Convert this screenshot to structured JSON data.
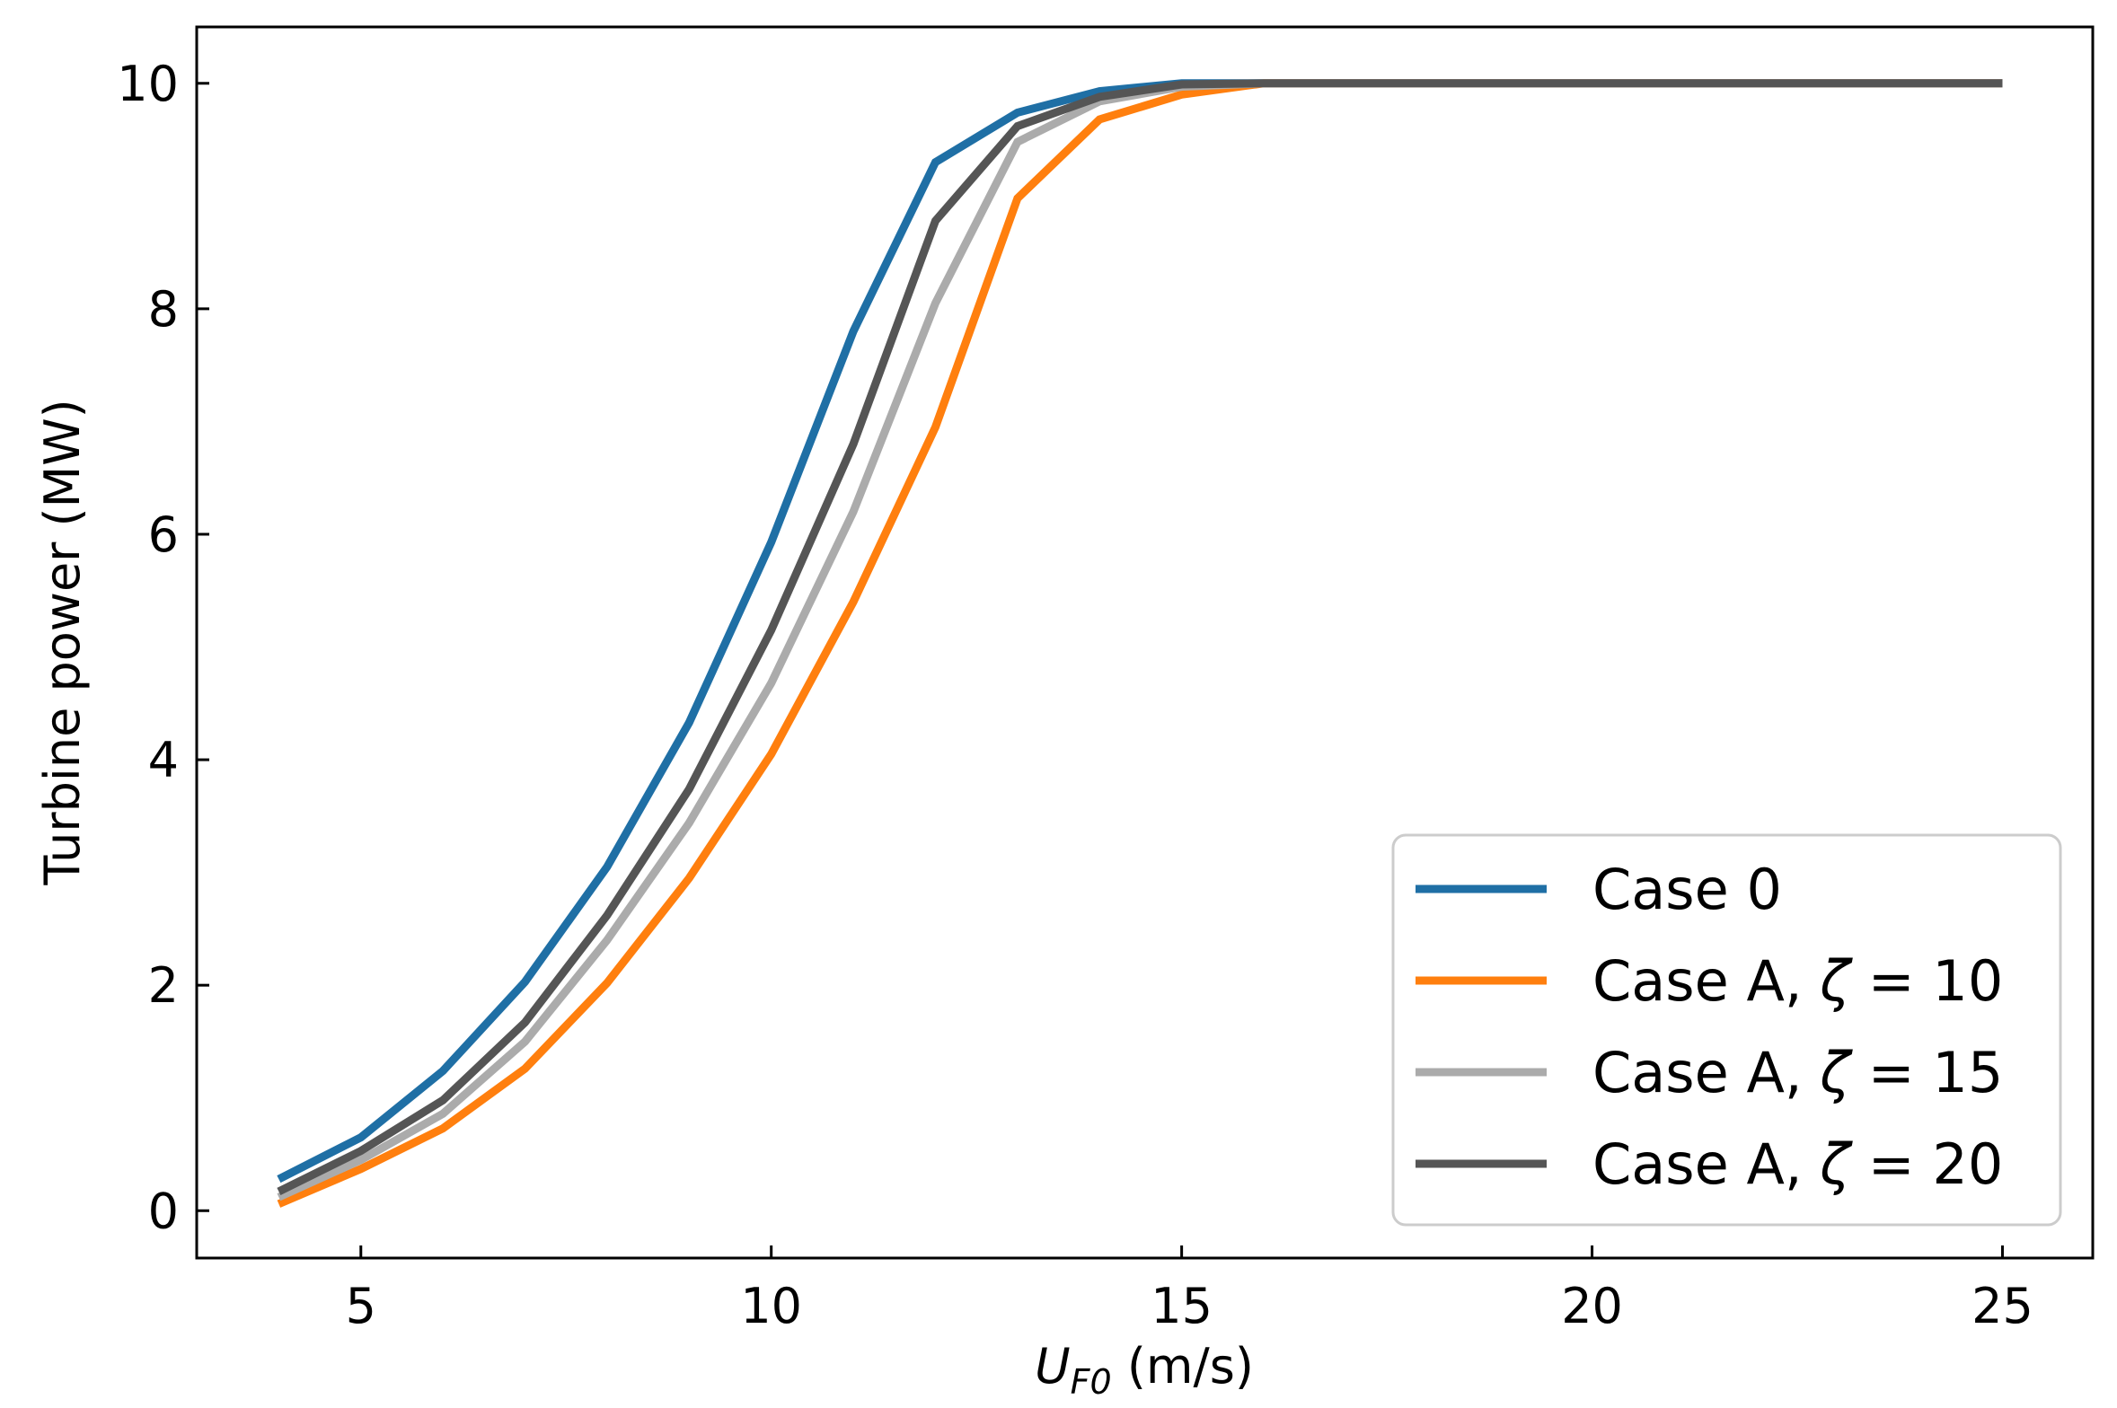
{
  "chart_data": {
    "type": "line",
    "title": "",
    "xlabel": {
      "var": "U",
      "sub": "F0",
      "unit": " (m/s)"
    },
    "ylabel": "Turbine power (MW)",
    "xlim": [
      3,
      26.1
    ],
    "ylim": [
      -0.42,
      10.5
    ],
    "xticks": [
      5,
      10,
      15,
      20,
      25
    ],
    "yticks": [
      0,
      2,
      4,
      6,
      8,
      10
    ],
    "legend_position": "lower-right",
    "x": [
      4,
      5,
      6,
      7,
      8,
      9,
      10,
      11,
      12,
      13,
      14,
      15,
      16,
      17,
      18,
      19,
      20,
      21,
      22,
      23,
      24,
      25
    ],
    "series": [
      {
        "name": "Case 0",
        "label_parts": [
          "Case 0"
        ],
        "color": "#1f6fa5",
        "values": [
          0.28,
          0.65,
          1.24,
          2.03,
          3.05,
          4.33,
          5.93,
          7.8,
          9.3,
          9.74,
          9.93,
          10.0,
          10.0,
          10.0,
          10.0,
          10.0,
          10.0,
          10.0,
          10.0,
          10.0,
          10.0,
          10.0
        ]
      },
      {
        "name": "Case A, ζ = 10",
        "label_parts": [
          "Case A, ",
          "ζ",
          " = 10"
        ],
        "color": "#ff7f0e",
        "values": [
          0.06,
          0.37,
          0.73,
          1.26,
          2.02,
          2.95,
          4.05,
          5.4,
          6.95,
          8.98,
          9.68,
          9.9,
          10.0,
          10.0,
          10.0,
          10.0,
          10.0,
          10.0,
          10.0,
          10.0,
          10.0,
          10.0
        ]
      },
      {
        "name": "Case A, ζ = 15",
        "label_parts": [
          "Case A, ",
          "ζ",
          " = 15"
        ],
        "color": "#ababab",
        "values": [
          0.12,
          0.45,
          0.86,
          1.5,
          2.4,
          3.44,
          4.68,
          6.2,
          8.05,
          9.48,
          9.84,
          9.97,
          10.0,
          10.0,
          10.0,
          10.0,
          10.0,
          10.0,
          10.0,
          10.0,
          10.0,
          10.0
        ]
      },
      {
        "name": "Case A, ζ = 20",
        "label_parts": [
          "Case A, ",
          "ζ",
          " = 20"
        ],
        "color": "#555555",
        "values": [
          0.17,
          0.53,
          0.98,
          1.67,
          2.62,
          3.74,
          5.15,
          6.8,
          8.78,
          9.62,
          9.88,
          9.99,
          10.0,
          10.0,
          10.0,
          10.0,
          10.0,
          10.0,
          10.0,
          10.0,
          10.0,
          10.0
        ]
      }
    ]
  }
}
